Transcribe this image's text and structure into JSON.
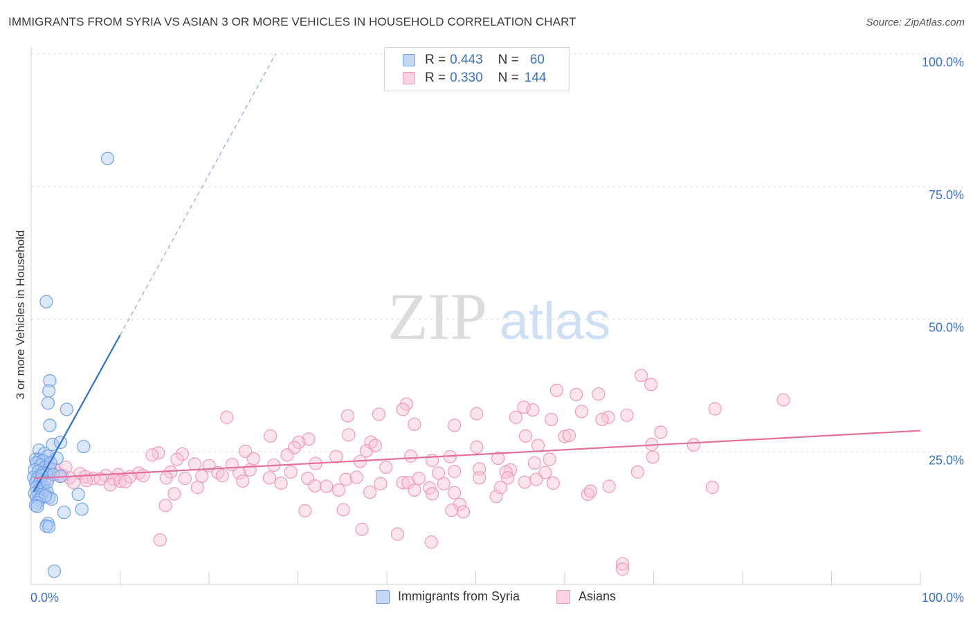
{
  "title": "IMMIGRANTS FROM SYRIA VS ASIAN 3 OR MORE VEHICLES IN HOUSEHOLD CORRELATION CHART",
  "source": "Source: ZipAtlas.com",
  "watermark": {
    "zip": "ZIP",
    "atlas": "atlas"
  },
  "legend_top": [
    {
      "r_label": "R =",
      "r_value": "0.443",
      "n_label": "N =",
      "n_value": "60",
      "color": "#6fa0e8"
    },
    {
      "r_label": "R =",
      "r_value": "0.330",
      "n_label": "N =",
      "n_value": "144",
      "color": "#f099b6"
    }
  ],
  "chart_data": {
    "type": "scatter",
    "xlabel": "",
    "ylabel": "3 or more Vehicles in Household",
    "xlim": [
      0,
      100
    ],
    "ylim": [
      0,
      100
    ],
    "x_tick_labels": [
      "0.0%",
      "100.0%"
    ],
    "y_tick_labels": [
      {
        "value": 25,
        "label": "25.0%"
      },
      {
        "value": 50,
        "label": "50.0%"
      },
      {
        "value": 75,
        "label": "75.0%"
      },
      {
        "value": 100,
        "label": "100.0%"
      }
    ],
    "grid": "horizontal dashed",
    "legend_position": "bottom",
    "series": [
      {
        "name": "Immigrants from Syria",
        "color": "#6fa0e8",
        "trend": {
          "x0": 0.3,
          "y0": 17.5,
          "x1": 10,
          "y1": 47,
          "x_dash_end": 27.5,
          "y_dash_end": 100
        },
        "points": [
          [
            8.6,
            80.3
          ],
          [
            1.7,
            53.3
          ],
          [
            2.1,
            38.4
          ],
          [
            2.0,
            36.5
          ],
          [
            1.9,
            34.2
          ],
          [
            4.0,
            33.0
          ],
          [
            2.1,
            30.0
          ],
          [
            2.4,
            26.4
          ],
          [
            3.3,
            26.8
          ],
          [
            5.9,
            26.0
          ],
          [
            0.9,
            25.3
          ],
          [
            1.5,
            24.7
          ],
          [
            1.9,
            24.2
          ],
          [
            2.9,
            23.8
          ],
          [
            0.5,
            23.6
          ],
          [
            0.9,
            23.5
          ],
          [
            1.3,
            23.3
          ],
          [
            0.6,
            22.9
          ],
          [
            1.1,
            22.5
          ],
          [
            1.6,
            22.1
          ],
          [
            2.0,
            21.8
          ],
          [
            0.4,
            21.6
          ],
          [
            0.8,
            21.3
          ],
          [
            1.3,
            21.0
          ],
          [
            1.7,
            20.9
          ],
          [
            2.5,
            20.7
          ],
          [
            3.3,
            20.4
          ],
          [
            0.3,
            20.2
          ],
          [
            0.7,
            20.0
          ],
          [
            1.1,
            19.8
          ],
          [
            1.5,
            19.5
          ],
          [
            0.5,
            19.2
          ],
          [
            0.9,
            19.0
          ],
          [
            1.3,
            18.6
          ],
          [
            0.6,
            18.3
          ],
          [
            1.0,
            18.0
          ],
          [
            1.4,
            17.8
          ],
          [
            1.8,
            17.5
          ],
          [
            0.4,
            17.2
          ],
          [
            0.8,
            17.0
          ],
          [
            1.2,
            16.9
          ],
          [
            5.3,
            17.0
          ],
          [
            0.6,
            16.5
          ],
          [
            1.0,
            16.3
          ],
          [
            2.0,
            16.4
          ],
          [
            2.3,
            16.1
          ],
          [
            0.9,
            15.9
          ],
          [
            1.6,
            16.7
          ],
          [
            0.7,
            15.4
          ],
          [
            0.5,
            14.9
          ],
          [
            0.7,
            14.7
          ],
          [
            5.7,
            14.2
          ],
          [
            3.7,
            13.6
          ],
          [
            1.9,
            11.5
          ],
          [
            1.7,
            11.0
          ],
          [
            2.0,
            10.9
          ],
          [
            2.6,
            2.5
          ],
          [
            1.2,
            20.5
          ],
          [
            2.2,
            22.9
          ],
          [
            1.8,
            19.3
          ]
        ]
      },
      {
        "name": "Asians",
        "color": "#f099b6",
        "trend": {
          "x0": 0.3,
          "y0": 20.0,
          "x1": 100,
          "y1": 29.0
        },
        "points": [
          [
            68.6,
            39.4
          ],
          [
            69.7,
            37.7
          ],
          [
            84.6,
            34.8
          ],
          [
            59.1,
            36.6
          ],
          [
            61.3,
            35.8
          ],
          [
            63.8,
            35.9
          ],
          [
            42.2,
            34.0
          ],
          [
            41.8,
            33.0
          ],
          [
            56.4,
            32.9
          ],
          [
            76.9,
            33.1
          ],
          [
            55.4,
            33.4
          ],
          [
            39.1,
            32.1
          ],
          [
            50.1,
            32.2
          ],
          [
            61.9,
            32.6
          ],
          [
            43.1,
            30.2
          ],
          [
            54.5,
            31.5
          ],
          [
            64.9,
            31.5
          ],
          [
            67.0,
            31.9
          ],
          [
            58.5,
            31.1
          ],
          [
            22.0,
            31.5
          ],
          [
            35.6,
            31.8
          ],
          [
            64.2,
            31.1
          ],
          [
            47.6,
            30.0
          ],
          [
            60.0,
            27.9
          ],
          [
            60.5,
            28.1
          ],
          [
            55.6,
            28.0
          ],
          [
            70.8,
            28.7
          ],
          [
            26.9,
            28.0
          ],
          [
            31.2,
            27.4
          ],
          [
            35.7,
            28.2
          ],
          [
            38.2,
            26.8
          ],
          [
            30.1,
            26.8
          ],
          [
            29.6,
            25.8
          ],
          [
            37.7,
            25.2
          ],
          [
            38.7,
            26.2
          ],
          [
            50.1,
            25.9
          ],
          [
            57.0,
            26.2
          ],
          [
            69.8,
            26.4
          ],
          [
            74.5,
            26.3
          ],
          [
            17.0,
            24.6
          ],
          [
            14.3,
            24.8
          ],
          [
            13.6,
            24.4
          ],
          [
            24.1,
            25.1
          ],
          [
            28.8,
            24.4
          ],
          [
            25.0,
            23.7
          ],
          [
            34.3,
            24.1
          ],
          [
            42.7,
            24.2
          ],
          [
            47.1,
            24.1
          ],
          [
            52.5,
            23.8
          ],
          [
            56.6,
            22.9
          ],
          [
            58.3,
            23.6
          ],
          [
            69.9,
            24.0
          ],
          [
            45.1,
            23.4
          ],
          [
            37.0,
            23.2
          ],
          [
            32.0,
            22.8
          ],
          [
            27.3,
            22.5
          ],
          [
            18.4,
            22.7
          ],
          [
            16.4,
            23.6
          ],
          [
            20.0,
            22.4
          ],
          [
            22.6,
            22.6
          ],
          [
            39.9,
            22.1
          ],
          [
            45.8,
            21.0
          ],
          [
            50.4,
            21.8
          ],
          [
            53.9,
            21.6
          ],
          [
            47.6,
            21.3
          ],
          [
            53.4,
            21.2
          ],
          [
            57.8,
            21.1
          ],
          [
            68.2,
            21.2
          ],
          [
            29.2,
            21.2
          ],
          [
            24.6,
            21.6
          ],
          [
            21.0,
            21.1
          ],
          [
            12.1,
            21.0
          ],
          [
            15.7,
            21.2
          ],
          [
            9.8,
            20.7
          ],
          [
            11.1,
            20.3
          ],
          [
            12.6,
            20.5
          ],
          [
            5.5,
            20.9
          ],
          [
            6.1,
            20.3
          ],
          [
            7.0,
            20.0
          ],
          [
            8.4,
            20.5
          ],
          [
            9.3,
            19.8
          ],
          [
            4.3,
            20.1
          ],
          [
            3.1,
            20.9
          ],
          [
            2.6,
            21.7
          ],
          [
            2.1,
            22.3
          ],
          [
            3.9,
            22.1
          ],
          [
            1.7,
            23.1
          ],
          [
            15.2,
            20.1
          ],
          [
            17.3,
            20.0
          ],
          [
            19.2,
            20.4
          ],
          [
            21.5,
            20.5
          ],
          [
            23.4,
            21.0
          ],
          [
            26.8,
            20.1
          ],
          [
            31.1,
            20.0
          ],
          [
            35.4,
            19.8
          ],
          [
            36.6,
            20.2
          ],
          [
            43.6,
            20.0
          ],
          [
            50.4,
            20.1
          ],
          [
            53.6,
            20.1
          ],
          [
            56.8,
            19.8
          ],
          [
            39.3,
            19.0
          ],
          [
            41.8,
            19.2
          ],
          [
            46.4,
            19.0
          ],
          [
            55.5,
            19.3
          ],
          [
            58.7,
            19.1
          ],
          [
            23.8,
            19.5
          ],
          [
            28.1,
            19.1
          ],
          [
            18.7,
            18.3
          ],
          [
            31.9,
            18.6
          ],
          [
            33.2,
            18.5
          ],
          [
            44.8,
            18.2
          ],
          [
            42.4,
            19.2
          ],
          [
            43.1,
            17.8
          ],
          [
            45.1,
            17.1
          ],
          [
            47.6,
            17.3
          ],
          [
            52.3,
            16.6
          ],
          [
            62.6,
            17.0
          ],
          [
            62.9,
            17.6
          ],
          [
            76.6,
            18.3
          ],
          [
            52.8,
            18.3
          ],
          [
            65.0,
            18.5
          ],
          [
            8.9,
            18.8
          ],
          [
            10.0,
            19.5
          ],
          [
            4.8,
            19.2
          ],
          [
            1.9,
            19.9
          ],
          [
            6.2,
            19.6
          ],
          [
            38.1,
            17.4
          ],
          [
            16.1,
            17.1
          ],
          [
            34.6,
            17.8
          ],
          [
            48.2,
            15.1
          ],
          [
            48.6,
            13.7
          ],
          [
            30.8,
            13.9
          ],
          [
            35.1,
            14.1
          ],
          [
            47.3,
            14.0
          ],
          [
            37.2,
            10.4
          ],
          [
            41.2,
            9.5
          ],
          [
            45.0,
            8.0
          ],
          [
            14.5,
            8.4
          ],
          [
            66.5,
            3.9
          ],
          [
            66.5,
            2.9
          ],
          [
            15.1,
            14.9
          ],
          [
            3.5,
            20.5
          ],
          [
            7.8,
            19.9
          ],
          [
            10.6,
            19.4
          ]
        ]
      }
    ]
  }
}
